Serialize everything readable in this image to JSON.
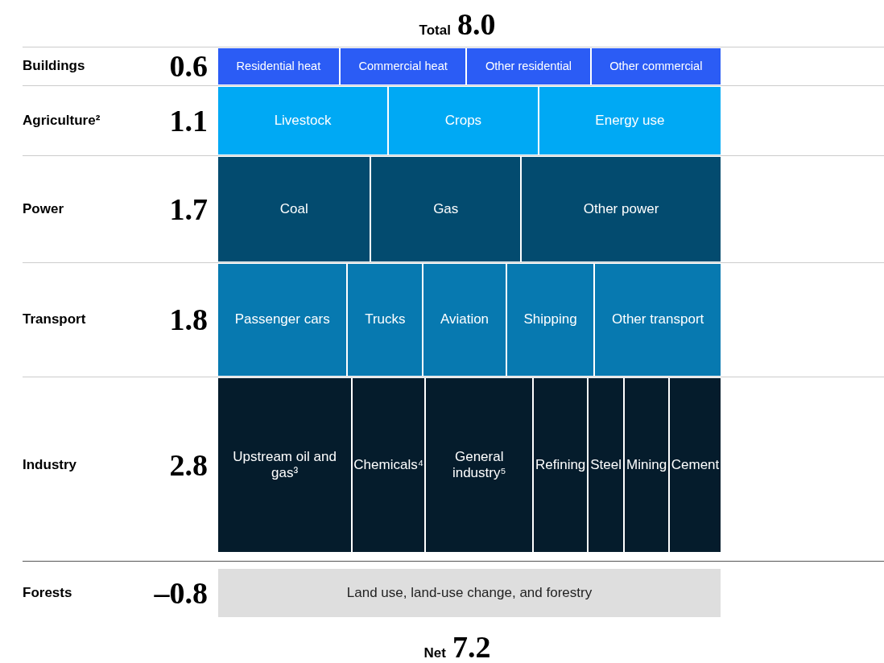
{
  "chart_data": {
    "type": "other",
    "title": "Total 8.0",
    "categories": [
      "Buildings",
      "Agriculture²",
      "Power",
      "Transport",
      "Industry",
      "Forests"
    ],
    "values": [
      0.6,
      1.1,
      1.7,
      1.8,
      2.8,
      -0.8
    ],
    "value_labels": [
      "0.6",
      "1.1",
      "1.7",
      "1.8",
      "2.8",
      "–0.8"
    ],
    "colors": [
      "#2b5cf5",
      "#00a9f4",
      "#034b6f",
      "#0779b0",
      "#051c2c",
      "#dedede"
    ],
    "annotations": [
      {
        "text": "Residential heat",
        "y": "Buildings"
      },
      {
        "text": "Commercial heat",
        "y": "Buildings"
      },
      {
        "text": "Other residential",
        "y": "Buildings"
      },
      {
        "text": "Other commercial",
        "y": "Buildings"
      },
      {
        "text": "Livestock",
        "y": "Agriculture²"
      },
      {
        "text": "Crops",
        "y": "Agriculture²"
      },
      {
        "text": "Energy use",
        "y": "Agriculture²"
      },
      {
        "text": "Coal",
        "y": "Power"
      },
      {
        "text": "Gas",
        "y": "Power"
      },
      {
        "text": "Other power",
        "y": "Power"
      },
      {
        "text": "Passenger cars",
        "y": "Transport"
      },
      {
        "text": "Trucks",
        "y": "Transport"
      },
      {
        "text": "Aviation",
        "y": "Transport"
      },
      {
        "text": "Shipping",
        "y": "Transport"
      },
      {
        "text": "Other transport",
        "y": "Transport"
      },
      {
        "text": "Upstream oil and gas³",
        "y": "Industry"
      },
      {
        "text": "Chemicals⁴",
        "y": "Industry"
      },
      {
        "text": "General industry⁵",
        "y": "Industry"
      },
      {
        "text": "Refining",
        "y": "Industry"
      },
      {
        "text": "Steel",
        "y": "Industry"
      },
      {
        "text": "Mining",
        "y": "Industry"
      },
      {
        "text": "Cement",
        "y": "Industry"
      },
      {
        "text": "Land use, land-use change, and forestry",
        "y": "Forests"
      },
      "Net 7.2"
    ]
  }
}
